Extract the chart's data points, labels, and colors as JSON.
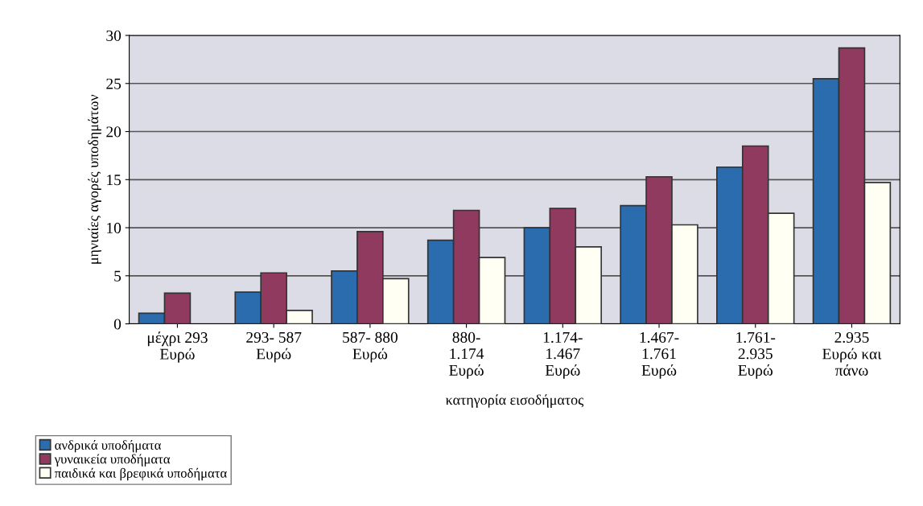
{
  "chart_data": {
    "type": "bar",
    "xlabel": "κατηγορία εισοδήματος",
    "ylabel": "μηνιαίες αγορές υποδημάτων",
    "categories": [
      "μέχρι 293\nΕυρώ",
      "293- 587\nΕυρώ",
      "587- 880\nΕυρώ",
      "880-\n1.174\nΕυρώ",
      "1.174-\n1.467\nΕυρώ",
      "1.467-\n1.761\nΕυρώ",
      "1.761-\n2.935\nΕυρώ",
      "2.935\nΕυρώ και\nπάνω"
    ],
    "series": [
      {
        "name": "ανδρικά υποδήματα",
        "color": "#2b6cae",
        "values": [
          1.1,
          3.3,
          5.5,
          8.7,
          10,
          12.3,
          16.3,
          25.5
        ]
      },
      {
        "name": "γυναικεία υποδήματα",
        "color": "#913a60",
        "values": [
          3.2,
          5.3,
          9.6,
          11.8,
          12,
          15.3,
          18.5,
          28.7
        ]
      },
      {
        "name": "παιδικά και βρεφικά υποδήματα",
        "color": "#fffff4",
        "values": [
          null,
          1.4,
          4.7,
          6.9,
          8,
          10.3,
          11.5,
          14.7
        ]
      }
    ],
    "ylim": [
      0,
      30
    ],
    "yticks": [
      0,
      5,
      10,
      15,
      20,
      25,
      30
    ],
    "grid": "y",
    "legend": "bottom left"
  }
}
